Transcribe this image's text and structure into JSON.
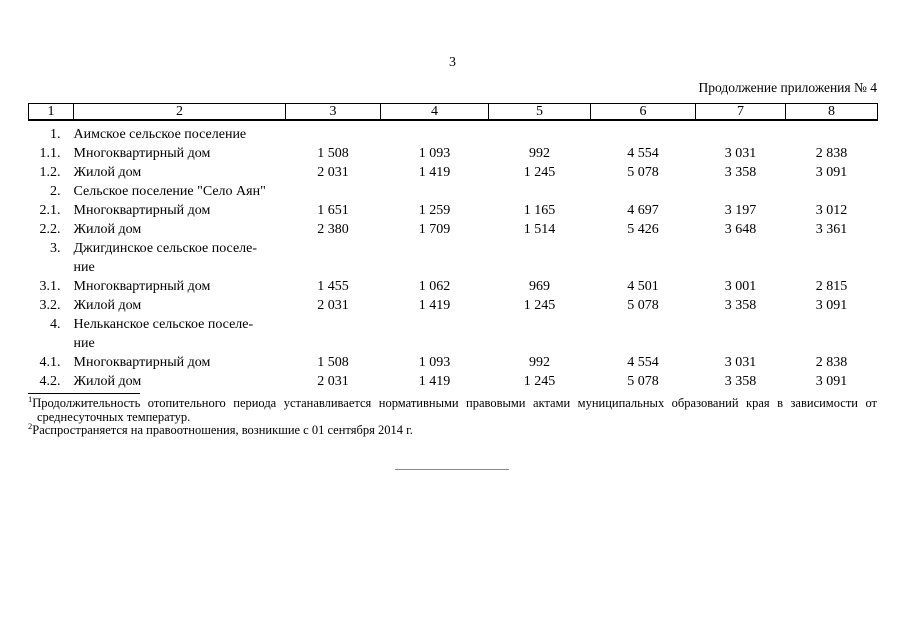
{
  "page": {
    "number": "3",
    "continuation_note": "Продолжение приложения № 4"
  },
  "table": {
    "header": [
      "1",
      "2",
      "3",
      "4",
      "5",
      "6",
      "7",
      "8"
    ],
    "rows": [
      {
        "num": "1.",
        "name": "Аимское сельское поселение",
        "values": []
      },
      {
        "num": "1.1.",
        "name": "Многоквартирный дом",
        "values": [
          "1 508",
          "1 093",
          "992",
          "4 554",
          "3 031",
          "2 838"
        ]
      },
      {
        "num": "1.2.",
        "name": "Жилой дом",
        "values": [
          "2 031",
          "1 419",
          "1 245",
          "5 078",
          "3 358",
          "3 091"
        ]
      },
      {
        "num": "2.",
        "name": "Сельское поселение \"Село Аян\"",
        "values": []
      },
      {
        "num": "2.1.",
        "name": "Многоквартирный дом",
        "values": [
          "1 651",
          "1 259",
          "1 165",
          "4 697",
          "3 197",
          "3 012"
        ]
      },
      {
        "num": "2.2.",
        "name": "Жилой дом",
        "values": [
          "2 380",
          "1 709",
          "1 514",
          "5 426",
          "3 648",
          "3 361"
        ]
      },
      {
        "num": "3.",
        "name": "Джигдинское сельское поселе-\nние",
        "values": []
      },
      {
        "num": "3.1.",
        "name": "Многоквартирный дом",
        "values": [
          "1 455",
          "1 062",
          "969",
          "4 501",
          "3 001",
          "2 815"
        ]
      },
      {
        "num": "3.2.",
        "name": "Жилой дом",
        "values": [
          "2 031",
          "1 419",
          "1 245",
          "5 078",
          "3 358",
          "3 091"
        ]
      },
      {
        "num": "4.",
        "name": "Нельканское сельское поселе-\nние",
        "values": []
      },
      {
        "num": "4.1.",
        "name": "Многоквартирный дом",
        "values": [
          "1 508",
          "1 093",
          "992",
          "4 554",
          "3 031",
          "2 838"
        ]
      },
      {
        "num": "4.2.",
        "name": "Жилой дом",
        "values": [
          "2 031",
          "1 419",
          "1 245",
          "5 078",
          "3 358",
          "3 091"
        ]
      }
    ]
  },
  "footnotes": [
    {
      "marker": "1",
      "lines": [
        "Продолжительность отопительного периода устанавливается нормативными правовыми актами муниципальных образований края в зависимости от",
        "среднесуточных температур."
      ]
    },
    {
      "marker": "2",
      "lines": [
        "Распространяется на правоотношения, возникшие с 01 сентября 2014 г."
      ]
    }
  ],
  "colors": {
    "text": "#000000",
    "table_border": "#000000",
    "end_rule": "#8a8a8a",
    "background": "#ffffff"
  }
}
